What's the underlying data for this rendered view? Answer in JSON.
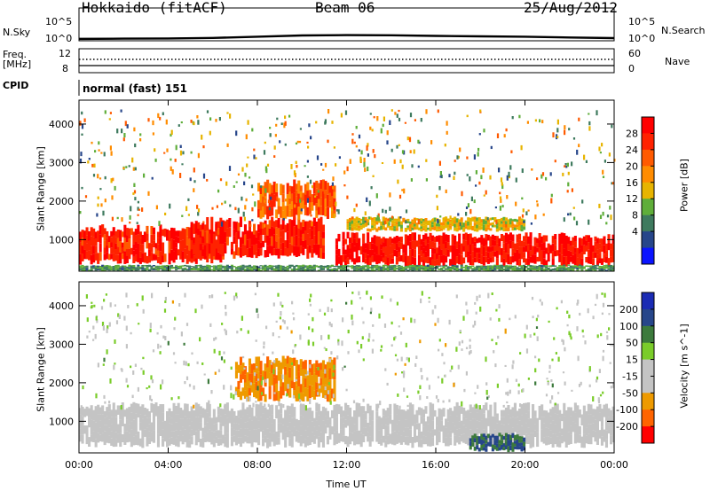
{
  "header": {
    "station": "Hokkaido (fitACF)",
    "beam": "Beam 06",
    "date": "25/Aug/2012"
  },
  "ctrl": {
    "nsky_label": "N.Sky",
    "nsearch_label": "N.Search",
    "nsky_ticks": [
      "10^5",
      "10^0"
    ],
    "freq_label_1": "Freq.",
    "freq_label_2": "[MHz]",
    "freq_ticks": [
      "12",
      "8"
    ],
    "nave_label": "Nave",
    "nave_ticks": [
      "60",
      "0"
    ],
    "cpid_label": "CPID",
    "cpid_value": "normal (fast) 151"
  },
  "xaxis": {
    "label": "Time UT",
    "ticks": [
      "00:00",
      "04:00",
      "08:00",
      "12:00",
      "16:00",
      "20:00",
      "00:00"
    ]
  },
  "chart_data": [
    {
      "type": "line",
      "title": "N.Sky / N.Search",
      "x_range_hours": [
        0,
        24
      ],
      "y_ticks": [
        "10^0",
        "10^5"
      ],
      "series": [
        {
          "name": "N.Sky",
          "x": [
            0,
            2,
            4,
            6,
            8,
            10,
            12,
            14,
            16,
            18,
            20,
            22,
            24
          ],
          "y_frac": [
            0.12,
            0.15,
            0.18,
            0.25,
            0.4,
            0.55,
            0.6,
            0.58,
            0.5,
            0.45,
            0.4,
            0.3,
            0.22
          ]
        }
      ]
    },
    {
      "type": "line",
      "title": "Freq / Nave",
      "freq_ticks_mhz": [
        8,
        12
      ],
      "nave_ticks": [
        0,
        60
      ],
      "series": [
        {
          "name": "Freq.",
          "x": [
            0,
            24
          ],
          "y": [
            11.9,
            11.9
          ]
        },
        {
          "name": "Nave",
          "x": [
            0,
            24
          ],
          "y": [
            37,
            37
          ]
        }
      ]
    },
    {
      "type": "heatmap",
      "title": "Power",
      "ylabel": "Slant Range [km]",
      "yticks": [
        1000,
        2000,
        3000,
        4000
      ],
      "ylim": [
        180,
        4620
      ],
      "xlim_hours": [
        0,
        24
      ],
      "colorbar_label": "Power [dB]",
      "colorbar_ticks": [
        4,
        8,
        12,
        16,
        20,
        24,
        28
      ],
      "colorbar_colors": [
        "#0a14ff",
        "#27468a",
        "#3e7a5e",
        "#5fae3a",
        "#e7b400",
        "#ff8c00",
        "#ff5a00",
        "#ff2200",
        "#ff0000"
      ],
      "bands": [
        {
          "t": [
            0,
            6.5
          ],
          "r": [
            350,
            1400
          ],
          "level": 0.9
        },
        {
          "t": [
            5,
            11
          ],
          "r": [
            500,
            1600
          ],
          "level": 0.92
        },
        {
          "t": [
            8,
            11.5
          ],
          "r": [
            1500,
            2600
          ],
          "level": 0.75
        },
        {
          "t": [
            11.5,
            24
          ],
          "r": [
            300,
            1200
          ],
          "level": 0.95
        },
        {
          "t": [
            12,
            20
          ],
          "r": [
            1200,
            1600
          ],
          "level": 0.5
        },
        {
          "t": [
            0,
            24
          ],
          "r": [
            180,
            350
          ],
          "level": 0.3
        }
      ]
    },
    {
      "type": "heatmap",
      "title": "Velocity",
      "ylabel": "Slant Range [km]",
      "yticks": [
        1000,
        2000,
        3000,
        4000
      ],
      "ylim": [
        180,
        4620
      ],
      "xlim_hours": [
        0,
        24
      ],
      "colorbar_label": "Velocity [m s^-1]",
      "colorbar_ticks": [
        200,
        100,
        50,
        15,
        -15,
        -50,
        -100,
        -200
      ],
      "colorbar_colors": [
        "#1a2bb4",
        "#27468a",
        "#3c7a3c",
        "#7acc2a",
        "#c4c4c4",
        "#c4c4c4",
        "#ee9a00",
        "#ff6400",
        "#ff0000"
      ],
      "bands": [
        {
          "t": [
            0,
            24
          ],
          "r": [
            300,
            1500
          ],
          "level": 0.0
        },
        {
          "t": [
            17.5,
            20
          ],
          "r": [
            200,
            700
          ],
          "level": 0.65
        },
        {
          "t": [
            7,
            11.5
          ],
          "r": [
            1500,
            2700
          ],
          "level": -0.6
        }
      ]
    }
  ]
}
